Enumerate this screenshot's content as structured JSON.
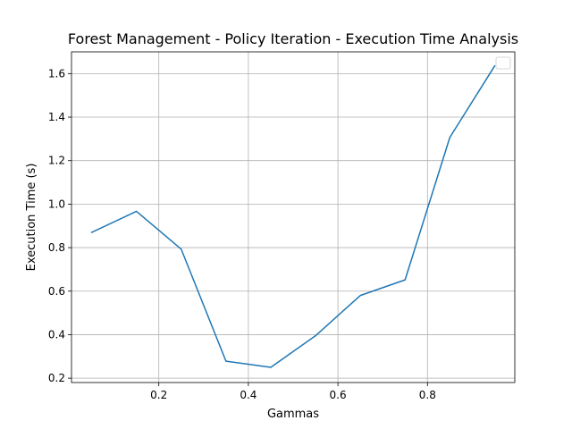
{
  "chart_data": {
    "type": "line",
    "title": "Forest Management - Policy Iteration - Execution Time Analysis",
    "xlabel": "Gammas",
    "ylabel": "Execution Time (s)",
    "xlim": [
      0.005,
      0.995
    ],
    "ylim": [
      0.18,
      1.7
    ],
    "x_ticks": [
      0.2,
      0.4,
      0.6,
      0.8
    ],
    "y_ticks": [
      0.2,
      0.4,
      0.6,
      0.8,
      1.0,
      1.2,
      1.4,
      1.6
    ],
    "grid": true,
    "legend": "top-right (empty)",
    "series": [
      {
        "color": "#1f77b4",
        "x": [
          0.05,
          0.15,
          0.25,
          0.35,
          0.45,
          0.55,
          0.65,
          0.75,
          0.85,
          0.95
        ],
        "y": [
          0.87,
          0.967,
          0.793,
          0.278,
          0.25,
          0.395,
          0.58,
          0.652,
          1.307,
          1.635
        ]
      }
    ]
  }
}
